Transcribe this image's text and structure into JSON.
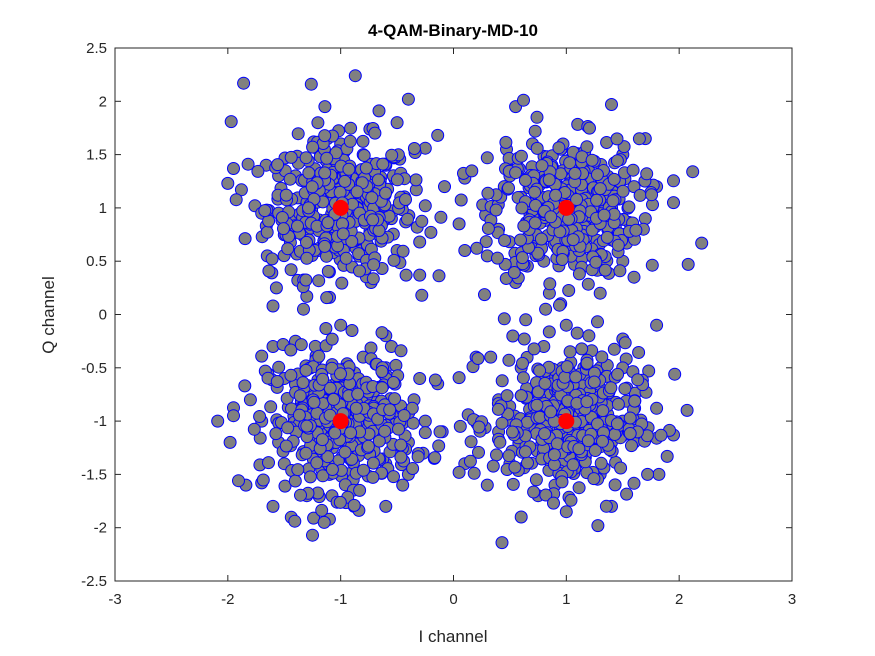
{
  "chart_data": {
    "type": "scatter",
    "title": "4-QAM-Binary-MD-10",
    "xlabel": "I channel",
    "ylabel": "Q channel",
    "xlim": [
      -3,
      3
    ],
    "ylim": [
      -2.5,
      2.5
    ],
    "xticks": [
      "-3",
      "-2",
      "-1",
      "0",
      "1",
      "2",
      "3"
    ],
    "yticks": [
      "2.5",
      "2",
      "1.5",
      "1",
      "0.5",
      "0",
      "-0.5",
      "-1",
      "-1.5",
      "-2",
      "-2.5"
    ],
    "grid": false,
    "legend": false,
    "colors": {
      "received_fill": "#808080",
      "received_edge": "#0000ff",
      "ideal": "#ff0000",
      "axes": "#262626"
    },
    "series": [
      {
        "role": "received-symbols",
        "description_points": [
          [
            -1.86,
            2.17
          ],
          [
            -1.26,
            2.16
          ],
          [
            -0.87,
            2.24
          ],
          [
            -0.4,
            2.02
          ],
          [
            -0.66,
            1.91
          ],
          [
            -1.97,
            1.81
          ],
          [
            -0.14,
            1.68
          ],
          [
            -0.5,
            1.8
          ],
          [
            -0.25,
            1.56
          ],
          [
            -0.34,
            1.52
          ],
          [
            -2.0,
            1.23
          ],
          [
            -1.82,
            1.41
          ],
          [
            -1.88,
            1.17
          ],
          [
            -1.76,
            1.02
          ],
          [
            -1.65,
            0.55
          ],
          [
            -1.61,
            0.39
          ],
          [
            -1.57,
            0.25
          ],
          [
            -1.3,
            0.17
          ],
          [
            -1.6,
            0.08
          ],
          [
            -1.38,
            0.32
          ],
          [
            -0.73,
            0.3
          ],
          [
            -0.42,
            0.37
          ],
          [
            -0.3,
            0.37
          ],
          [
            -0.33,
            1.17
          ],
          [
            -0.3,
            0.68
          ],
          [
            -0.2,
            0.77
          ],
          [
            -0.25,
            1.02
          ],
          [
            -1.2,
            1.55
          ],
          [
            -0.8,
            1.5
          ],
          [
            -1.4,
            1.3
          ],
          [
            -1.0,
            1.6
          ],
          [
            -0.6,
            1.4
          ],
          [
            -1.5,
            0.8
          ],
          [
            -0.5,
            0.6
          ],
          [
            -0.9,
            0.7
          ],
          [
            -1.1,
            0.4
          ],
          [
            -0.7,
            1.2
          ],
          [
            -1.3,
            1.0
          ],
          [
            -0.45,
            1.05
          ],
          [
            -1.55,
            1.3
          ],
          [
            -1.7,
            0.95
          ],
          [
            -0.55,
            0.9
          ],
          [
            -1.2,
            0.6
          ],
          [
            -0.9,
            1.2
          ],
          [
            -1.0,
            0.8
          ],
          [
            0.3,
            1.47
          ],
          [
            0.35,
            0.99
          ],
          [
            0.1,
            1.28
          ],
          [
            0.47,
            1.55
          ],
          [
            0.55,
            1.95
          ],
          [
            0.62,
            2.01
          ],
          [
            0.74,
            1.85
          ],
          [
            1.4,
            1.97
          ],
          [
            1.7,
            1.65
          ],
          [
            2.12,
            1.34
          ],
          [
            1.95,
            1.05
          ],
          [
            1.8,
            1.2
          ],
          [
            2.2,
            0.67
          ],
          [
            2.08,
            0.47
          ],
          [
            1.6,
            0.35
          ],
          [
            1.3,
            0.2
          ],
          [
            0.95,
            0.1
          ],
          [
            0.85,
            0.2
          ],
          [
            0.55,
            0.3
          ],
          [
            0.3,
            0.55
          ],
          [
            0.1,
            0.6
          ],
          [
            0.05,
            0.85
          ],
          [
            -0.08,
            1.2
          ],
          [
            1.5,
            1.5
          ],
          [
            0.5,
            1.3
          ],
          [
            1.2,
            1.4
          ],
          [
            0.7,
            1.6
          ],
          [
            1.6,
            1.2
          ],
          [
            0.4,
            0.8
          ],
          [
            1.4,
            0.7
          ],
          [
            0.8,
            0.5
          ],
          [
            1.1,
            0.6
          ],
          [
            0.6,
            1.1
          ],
          [
            1.3,
            1.0
          ],
          [
            0.9,
            1.35
          ],
          [
            1.7,
            0.9
          ],
          [
            1.5,
            0.5
          ],
          [
            0.45,
            1.2
          ],
          [
            1.0,
            0.75
          ],
          [
            0.7,
            0.85
          ],
          [
            -2.09,
            -1.0
          ],
          [
            -1.98,
            -1.2
          ],
          [
            -1.85,
            -0.67
          ],
          [
            -1.7,
            -0.39
          ],
          [
            -1.7,
            -1.58
          ],
          [
            -1.84,
            -1.6
          ],
          [
            -1.6,
            -1.8
          ],
          [
            -1.24,
            -1.91
          ],
          [
            -1.25,
            -2.07
          ],
          [
            -1.1,
            -1.92
          ],
          [
            -0.88,
            -1.8
          ],
          [
            -0.6,
            -1.8
          ],
          [
            -0.45,
            -1.6
          ],
          [
            -0.17,
            -1.35
          ],
          [
            -0.1,
            -1.1
          ],
          [
            -0.14,
            -0.65
          ],
          [
            -0.3,
            -0.6
          ],
          [
            -0.55,
            -0.3
          ],
          [
            -0.6,
            -0.2
          ],
          [
            -0.9,
            -0.15
          ],
          [
            -1.0,
            -0.1
          ],
          [
            -1.4,
            -0.25
          ],
          [
            -1.6,
            -0.3
          ],
          [
            -1.8,
            -0.8
          ],
          [
            -1.5,
            -1.4
          ],
          [
            -1.3,
            -1.7
          ],
          [
            -0.9,
            -1.6
          ],
          [
            -0.6,
            -1.4
          ],
          [
            -0.4,
            -1.2
          ],
          [
            -0.35,
            -0.8
          ],
          [
            -0.6,
            -0.5
          ],
          [
            -1.2,
            -0.4
          ],
          [
            -1.5,
            -0.6
          ],
          [
            -1.7,
            -1.0
          ],
          [
            -1.2,
            -1.2
          ],
          [
            -0.8,
            -1.1
          ],
          [
            -1.0,
            -0.7
          ],
          [
            -0.5,
            -1.0
          ],
          [
            -1.4,
            -0.9
          ],
          [
            -0.7,
            -0.8
          ],
          [
            -1.1,
            -1.5
          ],
          [
            -0.8,
            -0.4
          ],
          [
            -1.55,
            -1.2
          ],
          [
            -0.4,
            -1.5
          ],
          [
            -0.25,
            -1.0
          ],
          [
            0.13,
            -0.94
          ],
          [
            0.06,
            -1.05
          ],
          [
            0.2,
            -0.4
          ],
          [
            0.33,
            -0.4
          ],
          [
            0.45,
            -0.04
          ],
          [
            0.64,
            -0.05
          ],
          [
            1.0,
            -0.1
          ],
          [
            1.2,
            -0.2
          ],
          [
            1.5,
            -0.23
          ],
          [
            1.8,
            -0.1
          ],
          [
            1.73,
            -0.53
          ],
          [
            1.96,
            -0.56
          ],
          [
            2.07,
            -0.9
          ],
          [
            1.8,
            -0.88
          ],
          [
            1.8,
            -1.16
          ],
          [
            1.82,
            -1.5
          ],
          [
            1.72,
            -1.5
          ],
          [
            1.4,
            -1.8
          ],
          [
            1.28,
            -1.98
          ],
          [
            1.0,
            -1.85
          ],
          [
            0.75,
            -1.7
          ],
          [
            0.6,
            -1.9
          ],
          [
            0.43,
            -2.14
          ],
          [
            0.3,
            -1.6
          ],
          [
            0.1,
            -1.4
          ],
          [
            0.2,
            -1.0
          ],
          [
            0.4,
            -0.8
          ],
          [
            0.6,
            -0.5
          ],
          [
            0.8,
            -0.3
          ],
          [
            1.3,
            -0.5
          ],
          [
            1.6,
            -0.8
          ],
          [
            1.6,
            -1.2
          ],
          [
            1.3,
            -1.5
          ],
          [
            0.9,
            -1.6
          ],
          [
            0.5,
            -1.4
          ],
          [
            0.4,
            -1.1
          ],
          [
            0.7,
            -0.9
          ],
          [
            1.2,
            -0.8
          ],
          [
            1.4,
            -1.2
          ],
          [
            0.9,
            -1.3
          ],
          [
            1.1,
            -0.6
          ],
          [
            0.6,
            -1.2
          ],
          [
            1.5,
            -1.0
          ],
          [
            0.8,
            -0.7
          ],
          [
            1.0,
            -1.1
          ]
        ]
      },
      {
        "role": "ideal-constellation",
        "points": [
          [
            -1,
            1
          ],
          [
            1,
            1
          ],
          [
            -1,
            -1
          ],
          [
            1,
            -1
          ]
        ]
      }
    ]
  }
}
